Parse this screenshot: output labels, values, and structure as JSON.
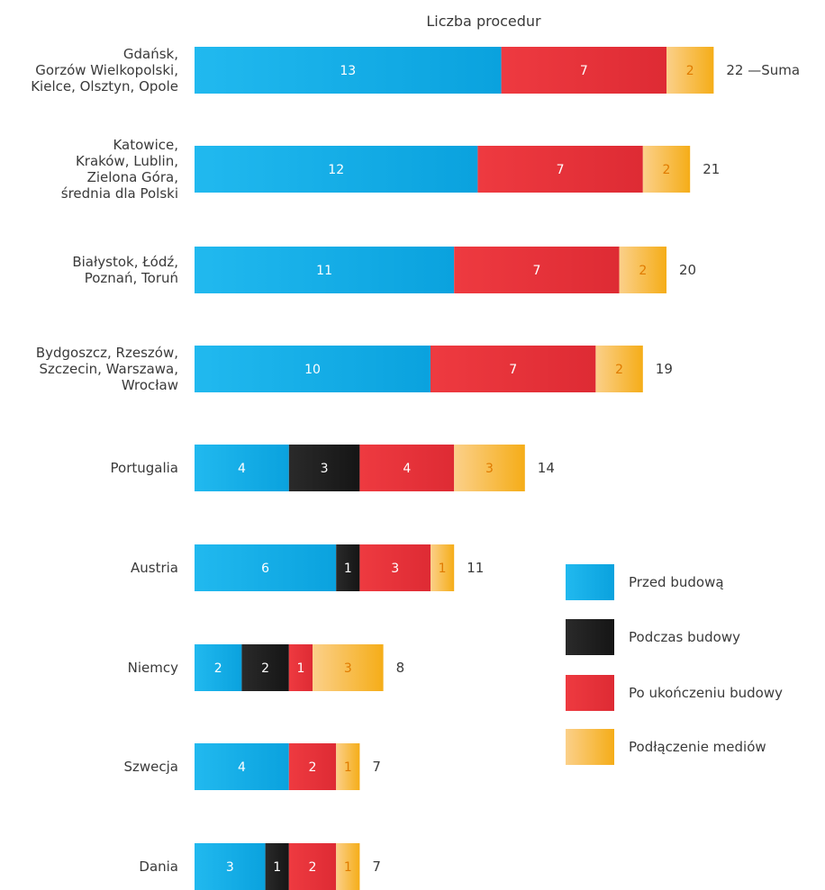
{
  "chart_data": {
    "type": "bar",
    "orientation": "horizontal",
    "stacked": true,
    "title": "Liczba procedur",
    "xlabel": "",
    "ylabel": "",
    "grid": false,
    "legend_position": "right",
    "categories": [
      "Gdańsk,\nGorzów Wielkopolski,\nKielce, Olsztyn, Opole",
      "Katowice,\nKraków, Lublin,\nZielona Góra,\nśrednia dla Polski",
      "Białystok, Łódź,\nPoznań, Toruń",
      "Bydgoszcz, Rzeszów,\nSzczecin, Warszawa,\nWrocław",
      "Portugalia",
      "Austria",
      "Niemcy",
      "Szwecja",
      "Dania"
    ],
    "series": [
      {
        "name": "Przed budową",
        "color": "#1aaee8",
        "values": [
          13,
          12,
          11,
          10,
          4,
          6,
          2,
          4,
          3
        ]
      },
      {
        "name": "Podczas budowy",
        "color": "#1c1c1c",
        "values": [
          0,
          0,
          0,
          0,
          3,
          1,
          2,
          0,
          1
        ]
      },
      {
        "name": "Po ukończeniu budowy",
        "color": "#e8323a",
        "values": [
          7,
          7,
          7,
          7,
          4,
          3,
          1,
          2,
          2
        ]
      },
      {
        "name": "Podłączenie mediów",
        "color": "#f5b52a",
        "values": [
          2,
          2,
          2,
          2,
          3,
          1,
          3,
          1,
          1
        ]
      }
    ],
    "totals": [
      "22",
      "21",
      "20",
      "19",
      "14",
      "11",
      "8",
      "7",
      "7"
    ],
    "total_annotation": "—Suma",
    "segment_label_colors": {
      "Przed budową": "#ffffff",
      "Podczas budowy": "#ffffff",
      "Po ukończeniu budowy": "#ffffff",
      "Podłączenie mediów": "#e07b00"
    }
  }
}
